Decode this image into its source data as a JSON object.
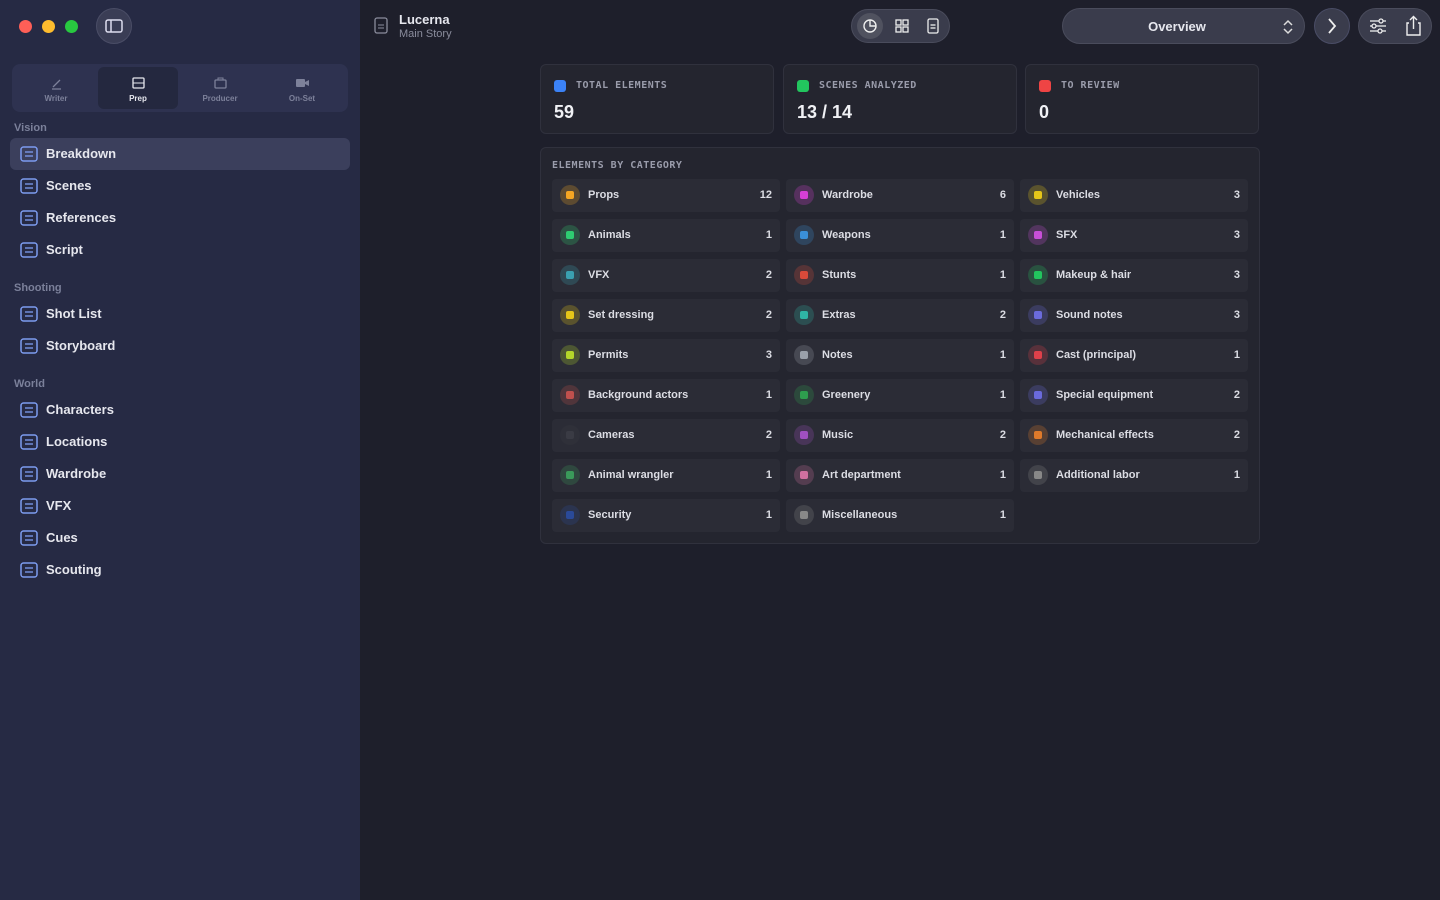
{
  "header": {
    "project": "Lucerna",
    "subtitle": "Main Story",
    "view_selector": "Overview"
  },
  "sidebar": {
    "modes": [
      {
        "label": "Writer",
        "selected": false
      },
      {
        "label": "Prep",
        "selected": true
      },
      {
        "label": "Producer",
        "selected": false
      },
      {
        "label": "On-Set",
        "selected": false
      }
    ],
    "sections": [
      {
        "title": "Vision",
        "items": [
          {
            "label": "Breakdown",
            "selected": true
          },
          {
            "label": "Scenes",
            "selected": false
          },
          {
            "label": "References",
            "selected": false
          },
          {
            "label": "Script",
            "selected": false
          }
        ]
      },
      {
        "title": "Shooting",
        "items": [
          {
            "label": "Shot List",
            "selected": false
          },
          {
            "label": "Storyboard",
            "selected": false
          }
        ]
      },
      {
        "title": "World",
        "items": [
          {
            "label": "Characters",
            "selected": false
          },
          {
            "label": "Locations",
            "selected": false
          },
          {
            "label": "Wardrobe",
            "selected": false
          },
          {
            "label": "VFX",
            "selected": false
          },
          {
            "label": "Cues",
            "selected": false
          },
          {
            "label": "Scouting",
            "selected": false
          }
        ]
      }
    ]
  },
  "stats": [
    {
      "label": "TOTAL ELEMENTS",
      "value": 59,
      "color": "#3b82f6"
    },
    {
      "label": "SCENES ANALYZED",
      "value": "13 / 14",
      "color": "#22c55e"
    },
    {
      "label": "TO REVIEW",
      "value": 0,
      "color": "#ef4444"
    }
  ],
  "categories": {
    "title": "ELEMENTS BY CATEGORY",
    "items": [
      {
        "name": "Props",
        "count": 12,
        "color": "#f5a623"
      },
      {
        "name": "Wardrobe",
        "count": 6,
        "color": "#d63fd6"
      },
      {
        "name": "Vehicles",
        "count": 3,
        "color": "#e6c619"
      },
      {
        "name": "Animals",
        "count": 1,
        "color": "#2ecc71"
      },
      {
        "name": "Weapons",
        "count": 1,
        "color": "#3a8fd8"
      },
      {
        "name": "SFX",
        "count": 3,
        "color": "#c84fd8"
      },
      {
        "name": "VFX",
        "count": 2,
        "color": "#3aa0b0"
      },
      {
        "name": "Stunts",
        "count": 1,
        "color": "#d94a3a"
      },
      {
        "name": "Makeup & hair",
        "count": 3,
        "color": "#22c55e"
      },
      {
        "name": "Set dressing",
        "count": 2,
        "color": "#e6c619"
      },
      {
        "name": "Extras",
        "count": 2,
        "color": "#2fb5a5"
      },
      {
        "name": "Sound notes",
        "count": 3,
        "color": "#6b6bdc"
      },
      {
        "name": "Permits",
        "count": 3,
        "color": "#b5d62a"
      },
      {
        "name": "Notes",
        "count": 1,
        "color": "#9aa0aa"
      },
      {
        "name": "Cast (principal)",
        "count": 1,
        "color": "#e0404a"
      },
      {
        "name": "Background actors",
        "count": 1,
        "color": "#c0504d"
      },
      {
        "name": "Greenery",
        "count": 1,
        "color": "#2e9e4e"
      },
      {
        "name": "Special equipment",
        "count": 2,
        "color": "#6a6adc"
      },
      {
        "name": "Cameras",
        "count": 2,
        "color": "#3a3b44"
      },
      {
        "name": "Music",
        "count": 2,
        "color": "#a050c0"
      },
      {
        "name": "Mechanical effects",
        "count": 2,
        "color": "#e07a2a"
      },
      {
        "name": "Animal wrangler",
        "count": 1,
        "color": "#3a9a5a"
      },
      {
        "name": "Art department",
        "count": 1,
        "color": "#d070a0"
      },
      {
        "name": "Additional labor",
        "count": 1,
        "color": "#888888"
      },
      {
        "name": "Security",
        "count": 1,
        "color": "#2a4a9a"
      },
      {
        "name": "Miscellaneous",
        "count": 1,
        "color": "#888888"
      }
    ]
  }
}
